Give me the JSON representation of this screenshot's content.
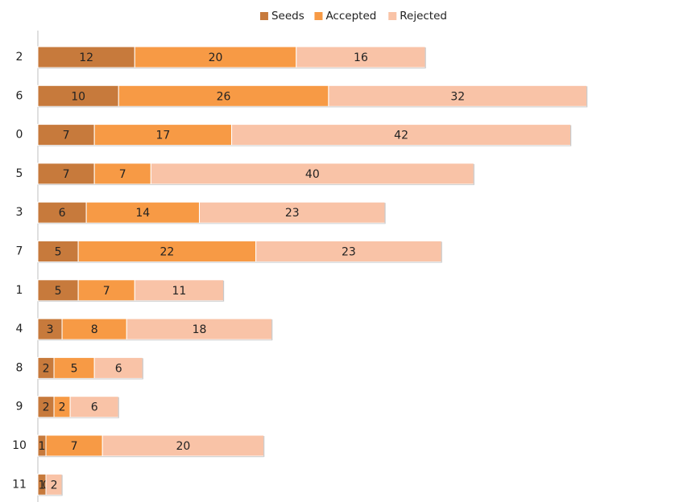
{
  "chart_data": {
    "type": "bar",
    "orientation": "horizontal",
    "stacked": true,
    "title": "",
    "xlabel": "",
    "ylabel": "",
    "xlim": [
      0,
      82
    ],
    "grid": false,
    "legend_position": "top",
    "categories": [
      "2",
      "6",
      "0",
      "5",
      "3",
      "7",
      "1",
      "4",
      "8",
      "9",
      "10",
      "11"
    ],
    "series": [
      {
        "name": "Seeds",
        "color": "#c77a3c",
        "values": [
          12,
          10,
          7,
          7,
          6,
          5,
          5,
          3,
          2,
          2,
          1,
          1
        ]
      },
      {
        "name": "Accepted",
        "color": "#f79a45",
        "values": [
          20,
          26,
          17,
          7,
          14,
          22,
          7,
          8,
          5,
          2,
          7,
          0
        ]
      },
      {
        "name": "Rejected",
        "color": "#f9c3a7",
        "values": [
          16,
          32,
          42,
          40,
          23,
          23,
          11,
          18,
          6,
          6,
          20,
          2
        ]
      }
    ]
  }
}
